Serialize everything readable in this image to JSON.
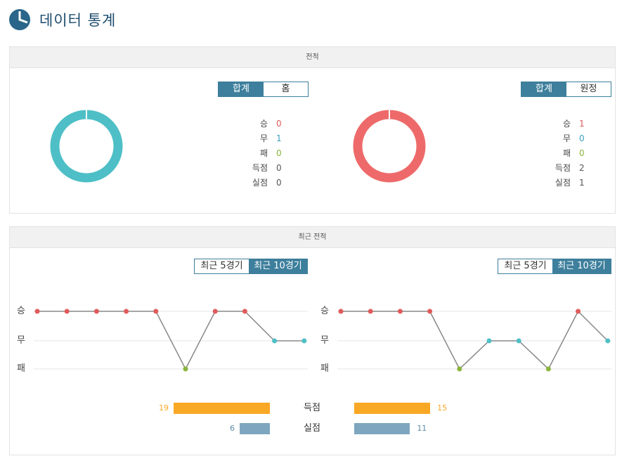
{
  "header": {
    "title": "데이터 통계",
    "icon": "pie-chart-icon"
  },
  "record": {
    "section_title": "전적",
    "home": {
      "tabs": [
        "합계",
        "홈"
      ],
      "active_tab": "합계",
      "donut_color": "#4ebfc6",
      "stats": [
        {
          "label": "승",
          "value": "0",
          "color": "#e05b5b"
        },
        {
          "label": "무",
          "value": "1",
          "color": "#3a9fc0"
        },
        {
          "label": "패",
          "value": "0",
          "color": "#8ab53c"
        },
        {
          "label": "득점",
          "value": "0",
          "color": "#555555"
        },
        {
          "label": "실점",
          "value": "0",
          "color": "#555555"
        }
      ]
    },
    "away": {
      "tabs": [
        "합계",
        "원정"
      ],
      "active_tab": "합계",
      "donut_color": "#ee6a6a",
      "stats": [
        {
          "label": "승",
          "value": "1",
          "color": "#e05b5b"
        },
        {
          "label": "무",
          "value": "0",
          "color": "#3a9fc0"
        },
        {
          "label": "패",
          "value": "0",
          "color": "#8ab53c"
        },
        {
          "label": "득점",
          "value": "2",
          "color": "#555555"
        },
        {
          "label": "실점",
          "value": "1",
          "color": "#555555"
        }
      ]
    }
  },
  "recent": {
    "section_title": "최근 전적",
    "home_tabs": [
      "최근 5경기",
      "최근 10경기"
    ],
    "away_tabs": [
      "최근 5경기",
      "최근 10경기"
    ],
    "active_tab": "최근 10경기",
    "y_labels": [
      "승",
      "무",
      "패"
    ],
    "colors": {
      "win": "#e05b5b",
      "draw": "#4ebfc6",
      "loss": "#8ab53c",
      "line": "#888888",
      "bar_goals": "#f9a825",
      "bar_conceded": "#7ea7bf"
    },
    "goals_label": "득점",
    "conceded_label": "실점",
    "home_goals": "19",
    "home_conceded": "6",
    "away_goals": "15",
    "away_conceded": "11"
  },
  "chart_data": [
    {
      "type": "line",
      "y_categories": [
        "패",
        "무",
        "승"
      ],
      "series": [
        {
          "values": [
            "승",
            "승",
            "승",
            "승",
            "승",
            "패",
            "승",
            "승",
            "무",
            "무"
          ]
        }
      ]
    },
    {
      "type": "line",
      "y_categories": [
        "패",
        "무",
        "승"
      ],
      "series": [
        {
          "values": [
            "승",
            "승",
            "승",
            "승",
            "패",
            "무",
            "무",
            "패",
            "승",
            "무"
          ]
        }
      ]
    },
    {
      "type": "bar",
      "categories": [
        "득점",
        "실점"
      ],
      "series": [
        {
          "values": [
            19,
            6
          ]
        },
        {
          "values": [
            15,
            11
          ]
        }
      ]
    }
  ]
}
